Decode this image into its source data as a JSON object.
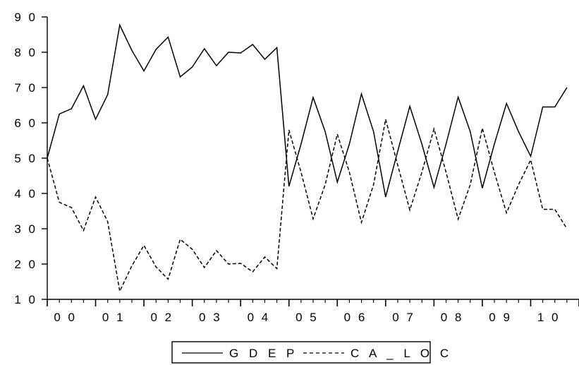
{
  "chart_data": {
    "type": "line",
    "title": "",
    "xlabel": "",
    "ylabel": "",
    "ylim": [
      10,
      90
    ],
    "yticks": [
      10,
      20,
      30,
      40,
      50,
      60,
      70,
      80,
      90
    ],
    "ytick_labels": [
      "1 0",
      "2 0",
      "3 0",
      "4 0",
      "5 0",
      "6 0",
      "7 0",
      "8 0",
      "9 0"
    ],
    "xlim": [
      0,
      44
    ],
    "xtick_labels": [
      "0 0",
      "0 1",
      "0 2",
      "0 3",
      "0 4",
      "0 5",
      "0 6",
      "0 7",
      "0 8",
      "0 9",
      "1 0"
    ],
    "grid": false,
    "legend_position": "bottom",
    "series": [
      {
        "name": "G D E P",
        "style": "solid",
        "color": "#000000",
        "values": [
          50,
          62.5,
          64,
          70.5,
          61,
          68,
          87.7,
          80.5,
          74.7,
          80.8,
          84.3,
          73,
          75.8,
          81,
          76.2,
          80,
          79.8,
          82.2,
          78,
          81.3,
          42,
          54,
          67.2,
          57.5,
          43.2,
          54,
          68.2,
          57.5,
          39,
          52,
          64.7,
          54,
          41.7,
          54,
          67.3,
          57.5,
          41.5,
          54,
          65.5,
          57.5,
          50.5,
          64.5,
          64.5,
          70
        ]
      },
      {
        "name": "C A _ L O C",
        "style": "dashed",
        "color": "#000000",
        "values": [
          50,
          37.5,
          36,
          29.5,
          39,
          32,
          12.3,
          19.5,
          25.3,
          19.2,
          15.7,
          27,
          24.2,
          19,
          23.8,
          20,
          20.2,
          17.8,
          22,
          18.7,
          58,
          46,
          32.8,
          42.5,
          56.8,
          46,
          31.8,
          42.5,
          61,
          48,
          35.3,
          46,
          58.3,
          46,
          32.7,
          42.5,
          58.5,
          46,
          34.5,
          42.5,
          49.5,
          35.5,
          35.5,
          30
        ]
      }
    ]
  }
}
